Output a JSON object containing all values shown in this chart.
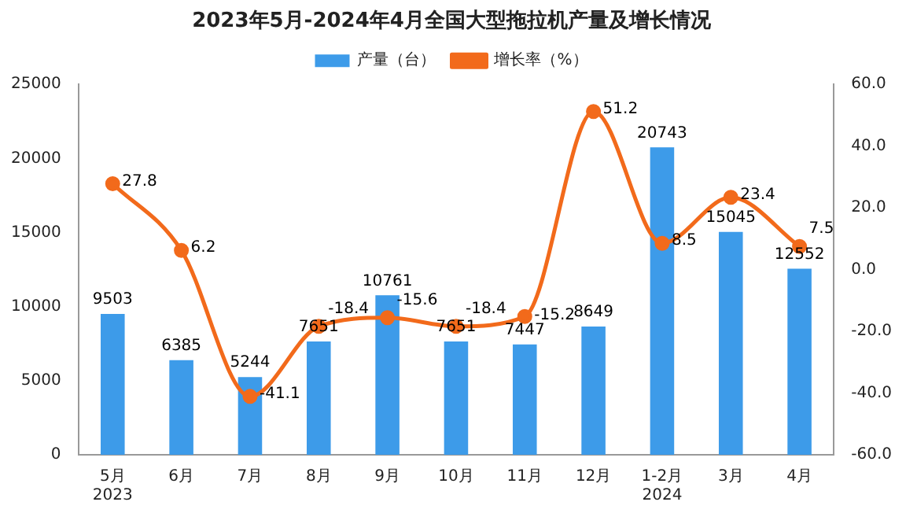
{
  "chart_data": {
    "type": "bar",
    "title": "2023年5月-2024年4月全国大型拖拉机产量及增长情况",
    "categories": [
      "5月\n2023",
      "6月",
      "7月",
      "8月",
      "9月",
      "10月",
      "11月",
      "12月",
      "1-2月\n2024",
      "3月",
      "4月"
    ],
    "series": [
      {
        "name": "产量（台）",
        "color": "#3d9be9",
        "values": [
          9503,
          6385,
          5244,
          7651,
          10761,
          7651,
          7447,
          8649,
          20743,
          15045,
          12552
        ]
      },
      {
        "name": "增长率（%）",
        "type": "line",
        "axis": "y2",
        "color": "#f26a1b",
        "marker": "circle",
        "values": [
          27.8,
          6.2,
          -41.1,
          -18.4,
          -15.6,
          -18.4,
          -15.2,
          51.2,
          8.5,
          23.4,
          7.5
        ]
      }
    ],
    "ylim": [
      0,
      25000
    ],
    "yticks": [
      0,
      5000,
      10000,
      15000,
      20000,
      25000
    ],
    "y2lim": [
      -60,
      60
    ],
    "y2ticks": [
      {
        "value": -60,
        "label": "-60.0"
      },
      {
        "value": -40,
        "label": "-40.0"
      },
      {
        "value": -20,
        "label": "-20.0"
      },
      {
        "value": 0,
        "label": "0.0"
      },
      {
        "value": 20,
        "label": "20.0"
      },
      {
        "value": 40,
        "label": "40.0"
      },
      {
        "value": 60,
        "label": "60.0"
      }
    ],
    "data_labels": true,
    "legend": "top",
    "grid": false
  }
}
